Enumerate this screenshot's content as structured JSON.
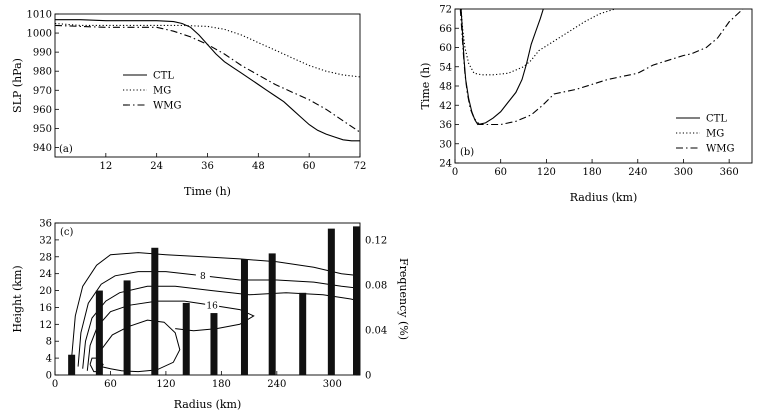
{
  "chart_data": [
    {
      "id": "a",
      "type": "line",
      "panel_label": "(a)",
      "xlabel": "Time (h)",
      "ylabel": "SLP (hPa)",
      "xlim": [
        0,
        72
      ],
      "ylim": [
        935,
        1010
      ],
      "xticks": [
        12,
        24,
        36,
        48,
        60,
        72
      ],
      "yticks": [
        940,
        950,
        960,
        970,
        980,
        990,
        1000,
        1010
      ],
      "legend_position": "center-left",
      "series": [
        {
          "name": "CTL",
          "style": "solid",
          "x": [
            0,
            6,
            12,
            18,
            24,
            28,
            30,
            32,
            34,
            36,
            38,
            40,
            42,
            44,
            46,
            48,
            50,
            52,
            54,
            56,
            58,
            60,
            62,
            64,
            66,
            68,
            70,
            72
          ],
          "y": [
            1007,
            1007,
            1006.5,
            1006.5,
            1006.5,
            1006,
            1005,
            1003,
            999,
            994,
            989,
            985,
            982,
            979,
            976,
            973,
            970,
            967,
            964,
            960,
            956,
            952,
            949,
            947,
            945.5,
            944,
            943.5,
            943.5
          ]
        },
        {
          "name": "MG",
          "style": "dotted",
          "x": [
            0,
            6,
            12,
            18,
            24,
            30,
            36,
            40,
            44,
            48,
            52,
            56,
            60,
            64,
            68,
            72
          ],
          "y": [
            1005,
            1004,
            1004,
            1004,
            1004,
            1004,
            1003.5,
            1002,
            999,
            995,
            991,
            987,
            983,
            980,
            978,
            977
          ]
        },
        {
          "name": "WMG",
          "style": "dashdot",
          "x": [
            0,
            6,
            12,
            18,
            24,
            28,
            32,
            36,
            40,
            44,
            48,
            52,
            56,
            60,
            64,
            68,
            72
          ],
          "y": [
            1004,
            1003.5,
            1003,
            1003,
            1003,
            1001,
            998,
            994,
            989,
            983,
            978,
            973,
            969,
            965,
            960,
            954,
            948
          ]
        }
      ]
    },
    {
      "id": "b",
      "type": "line",
      "panel_label": "(b)",
      "xlabel": "Radius (km)",
      "ylabel": "Time (h)",
      "xlim": [
        0,
        390
      ],
      "ylim": [
        24,
        72
      ],
      "xticks": [
        0,
        60,
        120,
        180,
        240,
        300,
        360
      ],
      "yticks": [
        24,
        30,
        36,
        42,
        48,
        54,
        60,
        66,
        72
      ],
      "legend_position": "bottom-right",
      "series": [
        {
          "name": "CTL",
          "style": "solid",
          "x": [
            8,
            10,
            12,
            14,
            18,
            22,
            26,
            30,
            40,
            50,
            60,
            70,
            80,
            88,
            94,
            100,
            106,
            112,
            116
          ],
          "y": [
            72,
            64,
            56,
            50,
            44,
            40,
            37.5,
            36,
            36.5,
            38,
            40,
            43,
            46,
            50,
            55,
            61,
            65,
            69,
            72
          ]
        },
        {
          "name": "MG",
          "style": "dotted",
          "x": [
            8,
            10,
            13,
            18,
            25,
            35,
            50,
            70,
            90,
            100,
            110,
            130,
            150,
            170,
            190,
            210
          ],
          "y": [
            72,
            66,
            60,
            55,
            52,
            51.5,
            51.5,
            52,
            54,
            56,
            59,
            62,
            65,
            68,
            70.5,
            72
          ]
        },
        {
          "name": "WMG",
          "style": "dashdot",
          "x": [
            7,
            9,
            11,
            13,
            16,
            20,
            25,
            32,
            45,
            60,
            80,
            100,
            115,
            130,
            160,
            200,
            240,
            260,
            280,
            300,
            310,
            330,
            345,
            360,
            378
          ],
          "y": [
            72,
            65,
            58,
            52,
            46,
            41,
            38,
            36,
            36,
            36,
            37,
            39,
            42,
            45.5,
            47,
            50,
            52,
            54.5,
            56,
            57.5,
            58,
            60,
            63,
            68,
            72
          ]
        }
      ]
    },
    {
      "id": "c",
      "type": "bar",
      "panel_label": "(c)",
      "xlabel": "Radius (km)",
      "ylabel": "Height (km)",
      "y2label": "Frequency (%)",
      "xlim": [
        0,
        330
      ],
      "ylim": [
        0,
        36
      ],
      "y2lim": [
        0,
        0.135
      ],
      "xticks": [
        0,
        60,
        120,
        180,
        240,
        300
      ],
      "yticks": [
        0,
        4,
        8,
        12,
        16,
        20,
        24,
        28,
        32,
        36
      ],
      "y2ticks": [
        0,
        0.04,
        0.08,
        0.12
      ],
      "bars": {
        "x": [
          18,
          48,
          78,
          108,
          142,
          172,
          205,
          235,
          268,
          299,
          330
        ],
        "values": [
          0.018,
          0.075,
          0.084,
          0.113,
          0.064,
          0.055,
          0.103,
          0.108,
          0.073,
          0.13,
          0.132
        ]
      },
      "contours": [
        {
          "x": [
            18,
            22,
            30,
            45,
            60,
            90,
            120,
            160,
            200,
            240,
            280,
            310,
            330
          ],
          "y": [
            4,
            14,
            21,
            26,
            28.5,
            29,
            28.5,
            28,
            27.5,
            26.8,
            25.5,
            24,
            23.5
          ]
        },
        {
          "label": "8",
          "x": [
            25,
            28,
            36,
            50,
            65,
            90,
            120,
            160,
            200,
            240,
            280,
            310,
            330
          ],
          "y": [
            2,
            10,
            17,
            21.5,
            23.5,
            24.5,
            24.5,
            23.5,
            22.5,
            22.5,
            22,
            21,
            20.5
          ]
        },
        {
          "x": [
            30,
            33,
            40,
            55,
            70,
            100,
            130,
            170,
            210,
            250,
            290,
            320,
            330
          ],
          "y": [
            1.5,
            8,
            13.5,
            17.5,
            19.5,
            21,
            21,
            20,
            19,
            19.5,
            19,
            18,
            17.5
          ]
        },
        {
          "label": "16",
          "x": [
            35,
            38,
            46,
            60,
            80,
            110,
            140,
            170,
            200,
            215,
            200,
            175,
            150,
            130
          ],
          "y": [
            1,
            7,
            11.5,
            15,
            16.5,
            17.5,
            17.5,
            16.5,
            15.5,
            14,
            12,
            11,
            10.5,
            11
          ]
        },
        {
          "x": [
            45,
            50,
            62,
            80,
            100,
            118,
            130,
            135,
            128,
            110,
            90,
            72,
            60,
            50,
            45
          ],
          "y": [
            2,
            6,
            9.5,
            11.5,
            13,
            12.5,
            10,
            6,
            3,
            1.2,
            0.8,
            1,
            1.5,
            2,
            2
          ]
        },
        {
          "x": [
            38,
            40,
            46,
            52,
            48,
            42,
            38
          ],
          "y": [
            2.5,
            4,
            4,
            2.5,
            0.8,
            0.8,
            2.5
          ]
        }
      ]
    }
  ]
}
